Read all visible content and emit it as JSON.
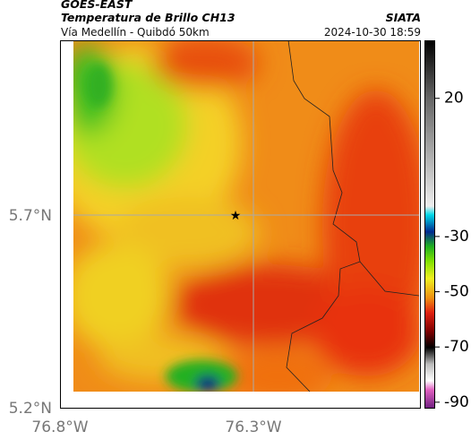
{
  "header": {
    "satellite": "GOES-EAST",
    "product": "Temperatura de Brillo CH13",
    "region": "Vía Medellín - Quibdó 50km",
    "source": "SIATA",
    "timestamp": "2024-10-30 18:59"
  },
  "map": {
    "lat_labels": [
      "5.7°N",
      "5.2°N"
    ],
    "lon_labels": [
      "76.8°W",
      "76.3°W"
    ]
  },
  "colorbar": {
    "lim": [
      -92,
      41
    ],
    "ticks": [
      20,
      -30,
      -50,
      -70,
      -90
    ]
  }
}
